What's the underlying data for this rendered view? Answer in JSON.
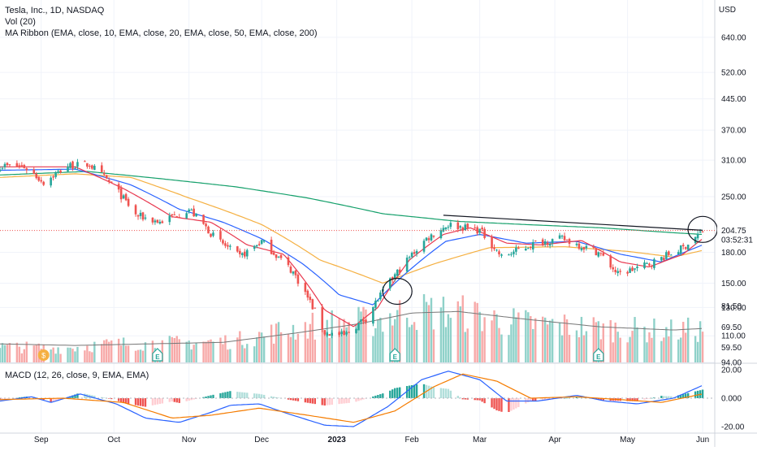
{
  "legend": {
    "title": "Tesla, Inc., 1D, NASDAQ",
    "volume": "Vol (20)",
    "ribbon": "MA Ribbon (EMA, close, 10, EMA, close, 20, EMA, close, 50, EMA, close, 200)",
    "macd": "MACD (12, 26, close, 9, EMA, EMA)"
  },
  "price_axis": {
    "currency": "USD"
  },
  "chart_data": [
    {
      "type": "candlestick",
      "title": "Tesla, Inc., 1D, NASDAQ",
      "yscale": "log",
      "ylim": [
        94,
        760
      ],
      "price_ticks": [
        "640.00",
        "520.00",
        "445.00",
        "370.00",
        "310.00",
        "250.00",
        "180.00",
        "150.00",
        "130.00",
        "110.00",
        "94.00"
      ],
      "last_price": "204.75",
      "countdown": "03:52:31",
      "x_labels": [
        "Sep",
        "Oct",
        "Nov",
        "Dec",
        "2023",
        "Feb",
        "Mar",
        "Apr",
        "May",
        "Jun"
      ],
      "x_label_dates": [
        "2022-09-01",
        "2022-10-01",
        "2022-11-01",
        "2022-12-01",
        "2023-01-01",
        "2023-02-01",
        "2023-03-01",
        "2023-04-01",
        "2023-05-01",
        "2023-06-01"
      ],
      "xlim": [
        "2022-08-15",
        "2023-06-06"
      ],
      "price_anchors": [
        [
          "2022-08-15",
          300
        ],
        [
          "2022-08-25",
          298
        ],
        [
          "2022-09-02",
          272
        ],
        [
          "2022-09-12",
          300
        ],
        [
          "2022-09-21",
          302
        ],
        [
          "2022-10-01",
          265
        ],
        [
          "2022-10-10",
          224
        ],
        [
          "2022-10-20",
          215
        ],
        [
          "2022-11-01",
          232
        ],
        [
          "2022-11-12",
          195
        ],
        [
          "2022-11-22",
          175
        ],
        [
          "2022-12-01",
          192
        ],
        [
          "2022-12-14",
          160
        ],
        [
          "2022-12-27",
          112
        ],
        [
          "2023-01-04",
          110
        ],
        [
          "2023-01-13",
          122
        ],
        [
          "2023-01-26",
          160
        ],
        [
          "2023-02-07",
          195
        ],
        [
          "2023-02-16",
          212
        ],
        [
          "2023-03-01",
          205
        ],
        [
          "2023-03-10",
          175
        ],
        [
          "2023-03-24",
          190
        ],
        [
          "2023-04-04",
          195
        ],
        [
          "2023-04-19",
          180
        ],
        [
          "2023-04-27",
          158
        ],
        [
          "2023-05-10",
          168
        ],
        [
          "2023-05-24",
          185
        ],
        [
          "2023-06-01",
          204
        ]
      ],
      "ema_anchors": {
        "ema10": [
          [
            "2022-08-15",
            298
          ],
          [
            "2022-09-15",
            298
          ],
          [
            "2022-10-05",
            262
          ],
          [
            "2022-10-25",
            222
          ],
          [
            "2022-11-10",
            215
          ],
          [
            "2022-11-25",
            188
          ],
          [
            "2022-12-10",
            178
          ],
          [
            "2022-12-27",
            128
          ],
          [
            "2023-01-08",
            116
          ],
          [
            "2023-01-18",
            130
          ],
          [
            "2023-01-31",
            172
          ],
          [
            "2023-02-14",
            200
          ],
          [
            "2023-02-25",
            208
          ],
          [
            "2023-03-12",
            190
          ],
          [
            "2023-03-26",
            188
          ],
          [
            "2023-04-12",
            193
          ],
          [
            "2023-04-28",
            170
          ],
          [
            "2023-05-10",
            165
          ],
          [
            "2023-05-24",
            178
          ],
          [
            "2023-06-01",
            195
          ]
        ],
        "ema20": [
          [
            "2022-08-15",
            292
          ],
          [
            "2022-09-15",
            294
          ],
          [
            "2022-10-08",
            268
          ],
          [
            "2022-10-28",
            232
          ],
          [
            "2022-11-15",
            215
          ],
          [
            "2022-12-01",
            195
          ],
          [
            "2022-12-18",
            168
          ],
          [
            "2023-01-02",
            140
          ],
          [
            "2023-01-16",
            132
          ],
          [
            "2023-01-30",
            160
          ],
          [
            "2023-02-15",
            192
          ],
          [
            "2023-03-01",
            200
          ],
          [
            "2023-03-20",
            190
          ],
          [
            "2023-04-10",
            192
          ],
          [
            "2023-04-28",
            178
          ],
          [
            "2023-05-15",
            170
          ],
          [
            "2023-06-01",
            188
          ]
        ],
        "ema50": [
          [
            "2022-08-15",
            280
          ],
          [
            "2022-09-15",
            286
          ],
          [
            "2022-10-08",
            280
          ],
          [
            "2022-11-01",
            248
          ],
          [
            "2022-12-01",
            212
          ],
          [
            "2022-12-25",
            172
          ],
          [
            "2023-01-20",
            150
          ],
          [
            "2023-02-10",
            168
          ],
          [
            "2023-03-05",
            185
          ],
          [
            "2023-04-05",
            186
          ],
          [
            "2023-05-01",
            181
          ],
          [
            "2023-05-20",
            175
          ],
          [
            "2023-06-01",
            182
          ]
        ],
        "ema200": [
          [
            "2022-08-15",
            284
          ],
          [
            "2022-09-20",
            290
          ],
          [
            "2022-10-20",
            278
          ],
          [
            "2022-11-20",
            265
          ],
          [
            "2022-12-20",
            248
          ],
          [
            "2023-01-20",
            226
          ],
          [
            "2023-02-20",
            216
          ],
          [
            "2023-03-20",
            212
          ],
          [
            "2023-04-20",
            208
          ],
          [
            "2023-05-20",
            202
          ],
          [
            "2023-06-01",
            200
          ]
        ]
      },
      "annotations": {
        "trendline": [
          [
            "2023-02-14",
            224
          ],
          [
            "2023-06-01",
            205
          ]
        ],
        "circles": [
          [
            "2023-01-26",
            143
          ],
          [
            "2023-06-01",
            206
          ]
        ]
      }
    },
    {
      "type": "bar",
      "title": "Vol (20)",
      "ylim": [
        0,
        1
      ],
      "volume_anchors": [
        [
          "2022-08-15",
          0.22
        ],
        [
          "2022-09-10",
          0.2
        ],
        [
          "2022-10-01",
          0.26
        ],
        [
          "2022-10-25",
          0.27
        ],
        [
          "2022-11-20",
          0.3
        ],
        [
          "2022-12-10",
          0.45
        ],
        [
          "2022-12-28",
          0.55
        ],
        [
          "2023-01-15",
          0.57
        ],
        [
          "2023-01-31",
          0.72
        ],
        [
          "2023-02-20",
          0.7
        ],
        [
          "2023-03-15",
          0.56
        ],
        [
          "2023-04-10",
          0.5
        ],
        [
          "2023-05-01",
          0.46
        ],
        [
          "2023-05-20",
          0.44
        ],
        [
          "2023-06-01",
          0.46
        ]
      ],
      "sma_anchors": [
        [
          "2022-08-15",
          0.24
        ],
        [
          "2022-09-15",
          0.22
        ],
        [
          "2022-10-15",
          0.24
        ],
        [
          "2022-11-15",
          0.26
        ],
        [
          "2022-12-15",
          0.38
        ],
        [
          "2023-01-10",
          0.5
        ],
        [
          "2023-02-01",
          0.64
        ],
        [
          "2023-02-20",
          0.66
        ],
        [
          "2023-03-20",
          0.56
        ],
        [
          "2023-04-20",
          0.46
        ],
        [
          "2023-05-20",
          0.42
        ],
        [
          "2023-06-01",
          0.44
        ]
      ],
      "event_markers": [
        {
          "date": "2022-09-02",
          "label": "$",
          "kind": "split"
        },
        {
          "date": "2022-10-19",
          "label": "E",
          "kind": "earnings"
        },
        {
          "date": "2023-01-25",
          "label": "E",
          "kind": "earnings"
        },
        {
          "date": "2023-04-19",
          "label": "E",
          "kind": "earnings"
        }
      ],
      "vol_ticks": [
        "81.50",
        "69.50",
        "59.50"
      ]
    },
    {
      "type": "line",
      "title": "MACD (12, 26, close, 9, EMA, EMA)",
      "ylim": [
        -24,
        24
      ],
      "ticks": [
        [
          "20.00",
          20
        ],
        [
          "0.000",
          0
        ],
        [
          "-20.00",
          -20
        ]
      ],
      "macd_anchors": [
        [
          "2022-08-15",
          -2
        ],
        [
          "2022-08-28",
          1
        ],
        [
          "2022-09-05",
          -3
        ],
        [
          "2022-09-17",
          3
        ],
        [
          "2022-10-02",
          -4
        ],
        [
          "2022-10-14",
          -14
        ],
        [
          "2022-10-28",
          -17
        ],
        [
          "2022-11-10",
          -10
        ],
        [
          "2022-11-18",
          -5
        ],
        [
          "2022-11-30",
          -4
        ],
        [
          "2022-12-12",
          -11
        ],
        [
          "2022-12-27",
          -19
        ],
        [
          "2023-01-08",
          -20
        ],
        [
          "2023-01-22",
          -6
        ],
        [
          "2023-02-05",
          13
        ],
        [
          "2023-02-16",
          19
        ],
        [
          "2023-03-01",
          13
        ],
        [
          "2023-03-12",
          -2
        ],
        [
          "2023-03-25",
          -2
        ],
        [
          "2023-04-10",
          2
        ],
        [
          "2023-04-22",
          -2
        ],
        [
          "2023-05-05",
          -4
        ],
        [
          "2023-05-20",
          0
        ],
        [
          "2023-06-01",
          9
        ]
      ],
      "signal_anchors": [
        [
          "2022-08-15",
          -1
        ],
        [
          "2022-09-10",
          0
        ],
        [
          "2022-10-05",
          -3
        ],
        [
          "2022-10-25",
          -14
        ],
        [
          "2022-11-10",
          -12
        ],
        [
          "2022-11-30",
          -7
        ],
        [
          "2022-12-20",
          -12
        ],
        [
          "2023-01-08",
          -17
        ],
        [
          "2023-01-25",
          -9
        ],
        [
          "2023-02-10",
          8
        ],
        [
          "2023-02-22",
          17
        ],
        [
          "2023-03-08",
          12
        ],
        [
          "2023-03-22",
          0
        ],
        [
          "2023-04-10",
          1
        ],
        [
          "2023-04-28",
          -1
        ],
        [
          "2023-05-15",
          -3
        ],
        [
          "2023-06-01",
          3
        ]
      ]
    }
  ],
  "colors": {
    "up": "#26a69a",
    "down": "#ef5350",
    "vol_up": "#8fd1c9",
    "vol_down": "#f7a9a8",
    "ema10": "#e8384f",
    "ema20": "#2962ff",
    "ema50": "#f5b042",
    "ema200": "#15a06b",
    "macd": "#2962ff",
    "signal": "#f57c00",
    "hist_up": "#26a69a",
    "hist_up_weak": "#b2dfdb",
    "hist_down": "#ef5350",
    "hist_down_weak": "#ffcdd2",
    "axis_text": "#131722",
    "grid": "#f0f3fa",
    "price_line": "#ef5350",
    "earnings_marker": "#26a69a",
    "split_marker": "#f5b042",
    "vol_sma": "#777777"
  }
}
